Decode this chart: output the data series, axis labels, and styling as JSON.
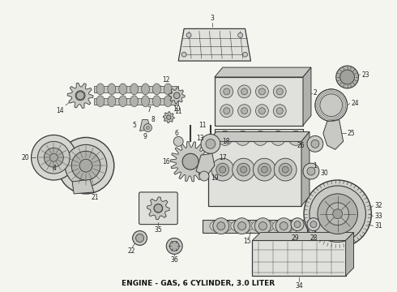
{
  "caption": "ENGINE - GAS, 6 CYLINDER, 3.0 LITER",
  "caption_fontsize": 6.5,
  "caption_fontweight": "bold",
  "background_color": "#f5f5f0",
  "fig_width": 4.9,
  "fig_height": 3.6,
  "dpi": 100,
  "lc": "#3a3a3a",
  "fc_light": "#e0e0dc",
  "fc_mid": "#c8c8c4",
  "fc_dark": "#b0b0ac",
  "label_fs": 5.5,
  "label_color": "#222222"
}
